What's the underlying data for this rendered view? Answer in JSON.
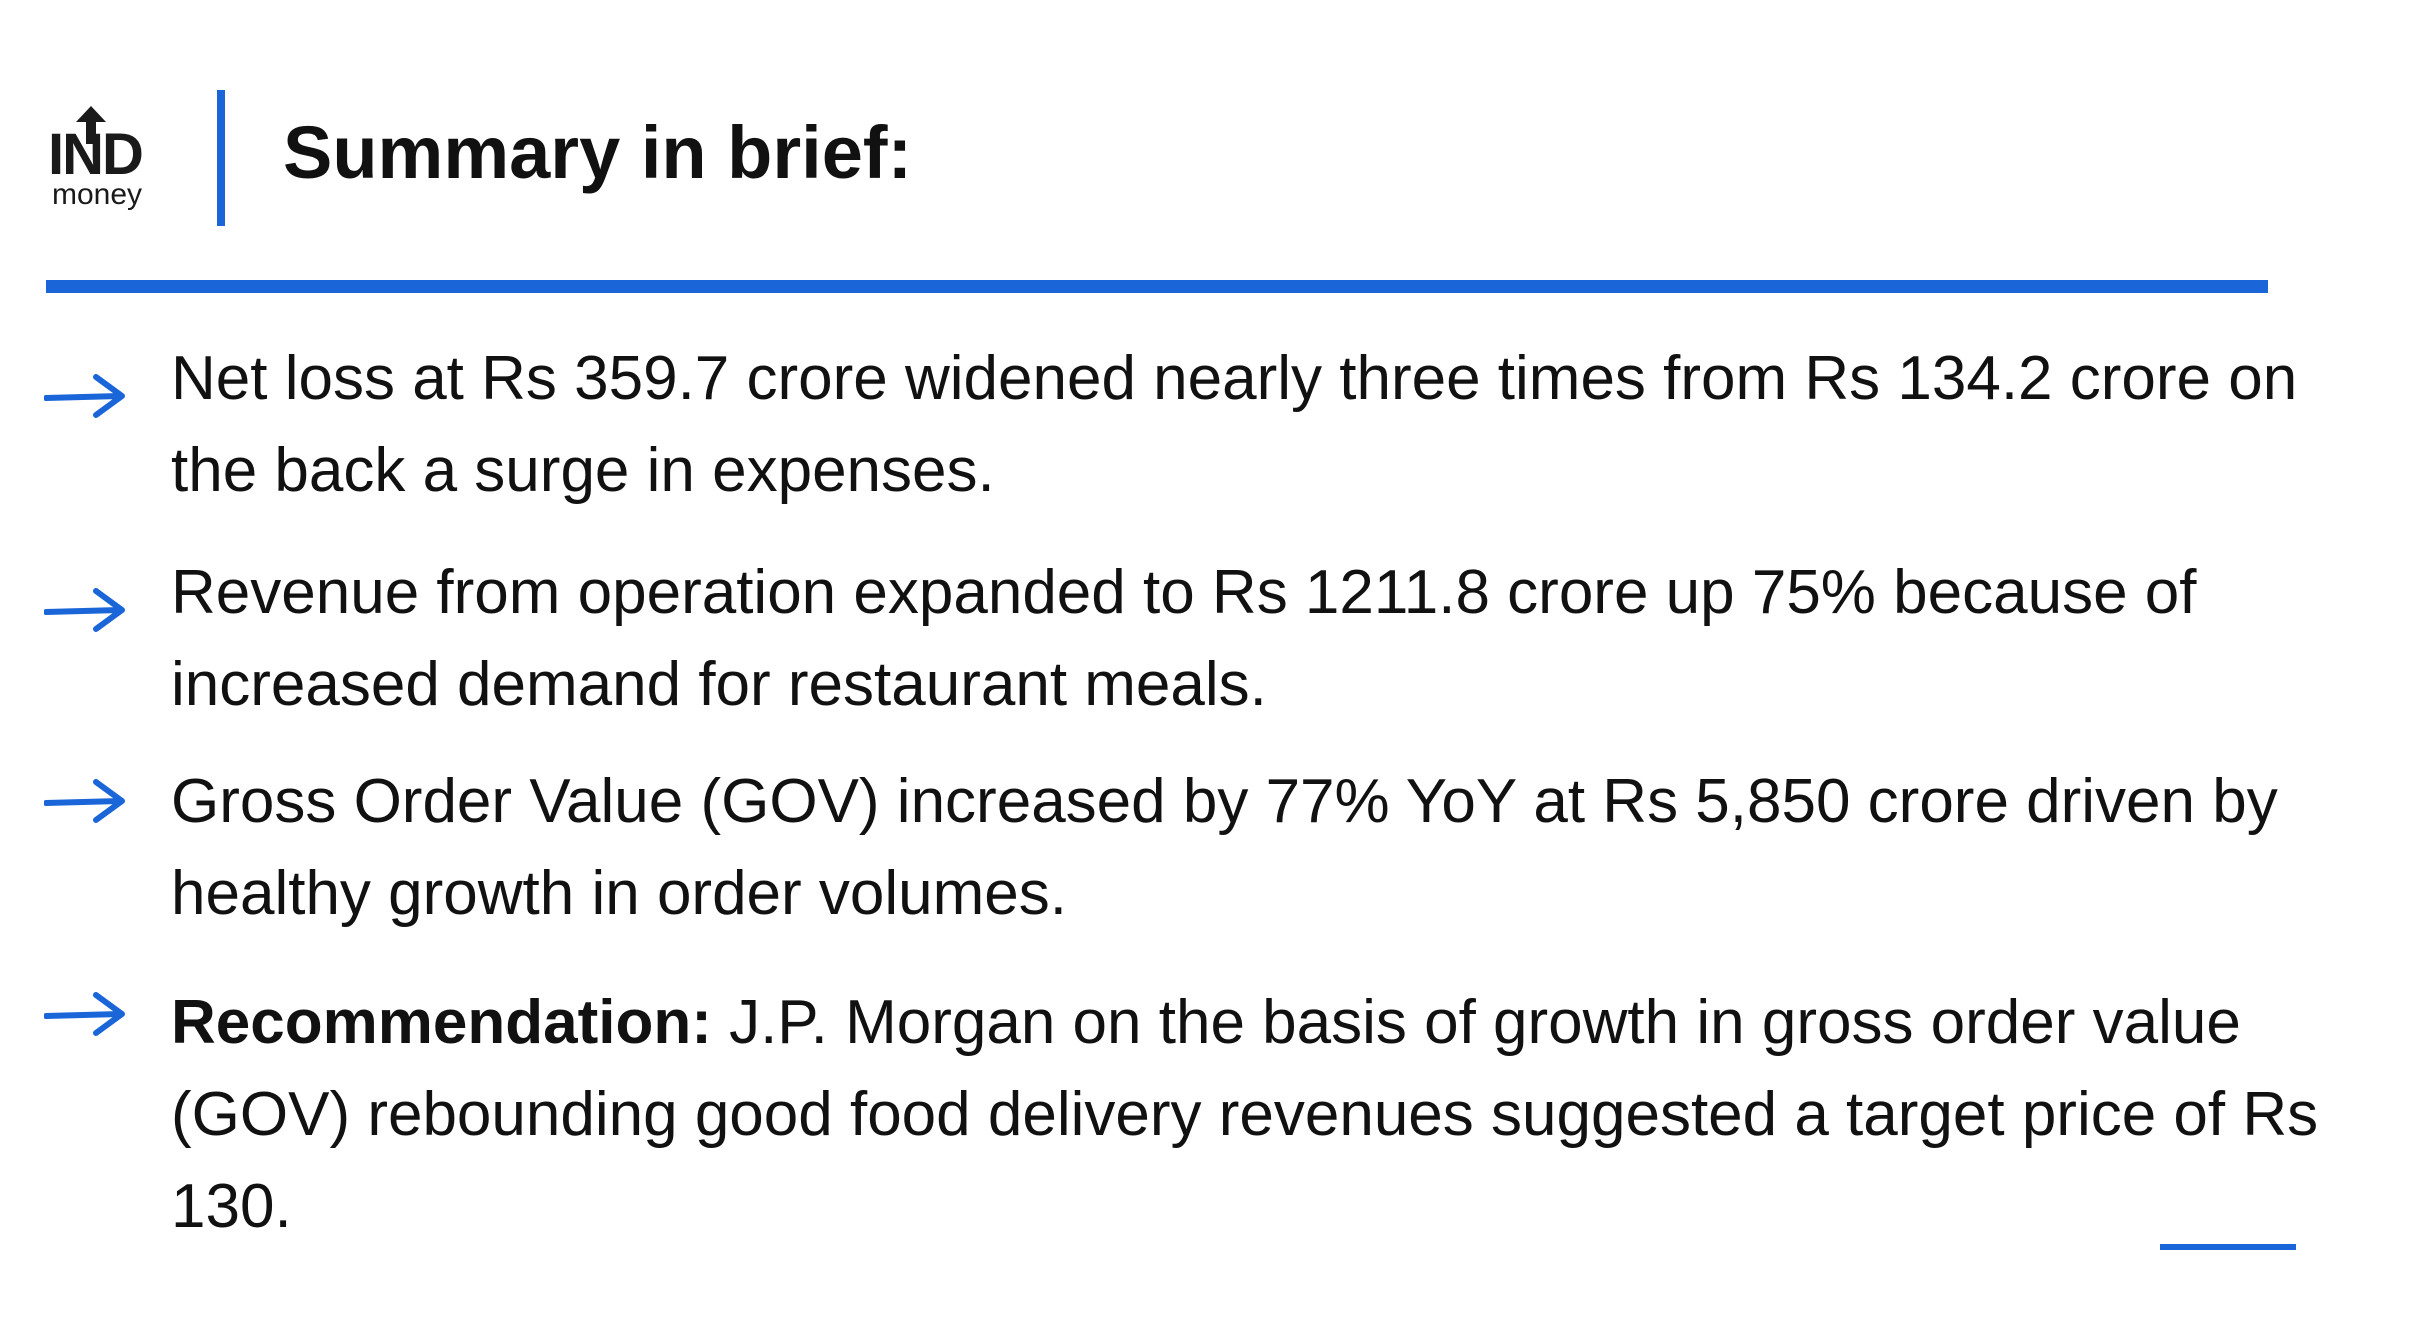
{
  "logo": {
    "wordmark": "IND",
    "subtext": "money",
    "icon": "up-arrow-icon"
  },
  "header": {
    "title": "Summary in brief:"
  },
  "bullets": [
    {
      "icon": "right-arrow-icon",
      "prefix": "",
      "text": "Net loss at Rs 359.7 crore widened nearly three times from Rs 134.2 crore on the back a surge in expenses."
    },
    {
      "icon": "right-arrow-icon",
      "prefix": "",
      "text": "Revenue from operation expanded to Rs 1211.8 crore up 75% because of increased demand for restaurant meals."
    },
    {
      "icon": "right-arrow-icon",
      "prefix": "",
      "text": "Gross Order Value (GOV) increased by 77% YoY at Rs 5,850 crore driven by healthy growth in order volumes."
    },
    {
      "icon": "right-arrow-icon",
      "prefix": "Recommendation:",
      "text": " J.P. Morgan on the basis of growth in gross order value (GOV) rebounding good food delivery revenues suggested a target price of Rs 130."
    }
  ],
  "colors": {
    "accent": "#1a66d9",
    "text": "#111111",
    "background": "#ffffff"
  }
}
